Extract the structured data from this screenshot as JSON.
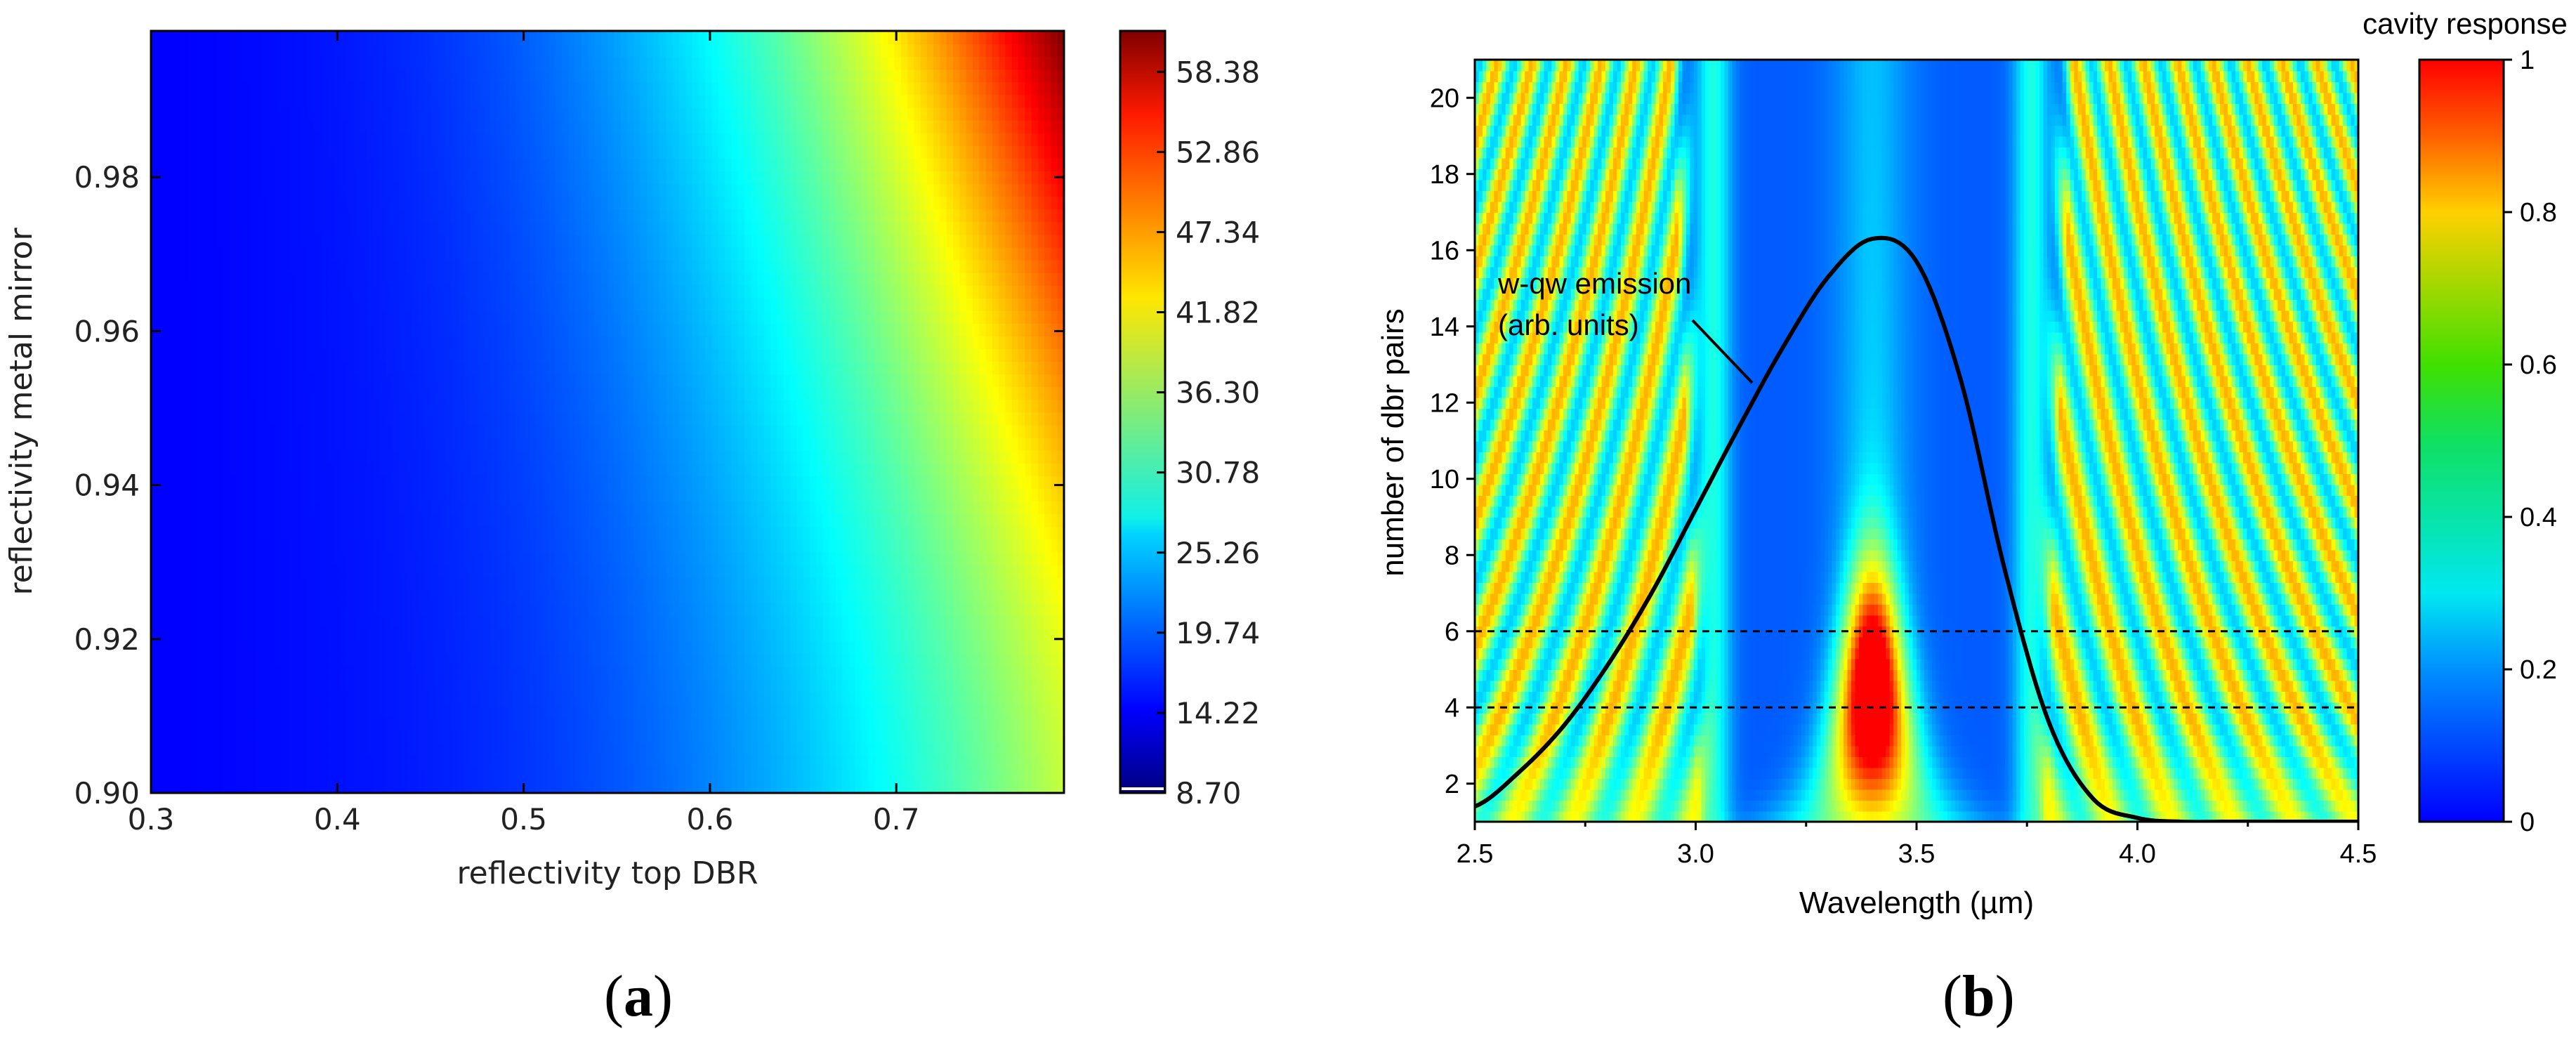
{
  "panels": {
    "a_label_open": "(",
    "a_label_letter": "a",
    "a_label_close": ")",
    "b_label_open": "(",
    "b_label_letter": "b",
    "b_label_close": ")"
  },
  "chart_data": [
    {
      "type": "heatmap",
      "panel": "a",
      "title": "",
      "xlabel": "reflectivity top DBR",
      "ylabel": "reflectivity metal mirror",
      "xlim": [
        0.3,
        0.79
      ],
      "ylim": [
        0.9,
        0.999
      ],
      "xticks": [
        0.3,
        0.4,
        0.5,
        0.6,
        0.7
      ],
      "xticklabels": [
        "0.3",
        "0.4",
        "0.5",
        "0.6",
        "0.7"
      ],
      "yticks": [
        0.9,
        0.92,
        0.94,
        0.96,
        0.98
      ],
      "yticklabels": [
        "0.90",
        "0.92",
        "0.94",
        "0.96",
        "0.98"
      ],
      "colormap": "jet",
      "colorbar": {
        "min": 8.7,
        "max": 61.2,
        "ticks": [
          8.7,
          14.22,
          19.74,
          25.26,
          30.78,
          36.3,
          41.82,
          47.34,
          52.86,
          58.38
        ],
        "ticklabels": [
          "8.70",
          "14.22",
          "19.74",
          "25.26",
          "30.78",
          "36.30",
          "41.82",
          "47.34",
          "52.86",
          "58.38"
        ],
        "label": ""
      },
      "z_samples": [
        {
          "x": 0.3,
          "y": 0.9,
          "z": 9.5
        },
        {
          "x": 0.3,
          "y": 0.999,
          "z": 9.0
        },
        {
          "x": 0.5,
          "y": 0.9,
          "z": 14.5
        },
        {
          "x": 0.5,
          "y": 0.999,
          "z": 15.0
        },
        {
          "x": 0.6,
          "y": 0.9,
          "z": 22.0
        },
        {
          "x": 0.6,
          "y": 0.999,
          "z": 24.0
        },
        {
          "x": 0.7,
          "y": 0.9,
          "z": 30.0
        },
        {
          "x": 0.7,
          "y": 0.999,
          "z": 38.0
        },
        {
          "x": 0.79,
          "y": 0.9,
          "z": 36.0
        },
        {
          "x": 0.79,
          "y": 0.999,
          "z": 61.0
        }
      ],
      "grid": false
    },
    {
      "type": "heatmap",
      "panel": "b",
      "title": "",
      "xlabel": "Wavelength (µm)",
      "ylabel": "number of dbr pairs",
      "xlim": [
        2.5,
        4.5
      ],
      "ylim": [
        1,
        21
      ],
      "xticks": [
        2.5,
        3.0,
        3.5,
        4.0,
        4.5
      ],
      "xticklabels": [
        "2.5",
        "3.0",
        "3.5",
        "4.0",
        "4.5"
      ],
      "yticks": [
        2,
        4,
        6,
        8,
        10,
        12,
        14,
        16,
        18,
        20
      ],
      "yticklabels": [
        "2",
        "4",
        "6",
        "8",
        "10",
        "12",
        "14",
        "16",
        "18",
        "20"
      ],
      "colormap": "jet",
      "colorbar": {
        "min": 0,
        "max": 1,
        "ticks": [
          0,
          0.2,
          0.4,
          0.6,
          0.8,
          1
        ],
        "ticklabels": [
          "0",
          "0.2",
          "0.4",
          "0.6",
          "0.8",
          "1"
        ],
        "label": "cavity response"
      },
      "resonance_center_um": 3.4,
      "dashed_lines": [
        {
          "y": 4,
          "style": "dashed"
        },
        {
          "y": 6,
          "style": "dashed"
        }
      ],
      "series": [
        {
          "name": "w-qw emission (arb. units)",
          "style": "solid black line",
          "x": [
            2.5,
            2.6,
            2.7,
            2.8,
            2.9,
            3.0,
            3.1,
            3.2,
            3.3,
            3.4,
            3.5,
            3.6,
            3.7,
            3.8,
            3.9,
            4.0,
            4.1,
            4.2,
            4.5
          ],
          "y": [
            1.4,
            2.3,
            3.5,
            5.1,
            7.0,
            9.2,
            11.4,
            13.5,
            15.3,
            16.3,
            15.7,
            12.6,
            7.6,
            3.6,
            1.6,
            1.1,
            1.0,
            1.0,
            1.0
          ]
        }
      ],
      "annotations": [
        {
          "text_line1": "w-qw emission",
          "text_line2": "(arb. units)",
          "points_to": "emission curve"
        }
      ],
      "grid": false
    }
  ]
}
